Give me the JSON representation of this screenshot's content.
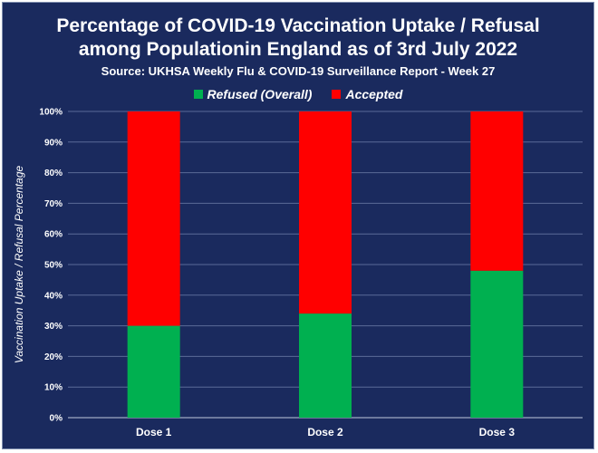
{
  "chart_data": {
    "type": "bar",
    "stacked": true,
    "title": "Percentage of COVID-19 Vaccination Uptake / Refusal",
    "title_line2": "among Populationin England as of 3rd July 2022",
    "subtitle": "Source: UKHSA Weekly Flu & COVID-19 Surveillance Report - Week 27",
    "xlabel": "",
    "ylabel": "Vaccination Uptake / Refusal Percentage",
    "categories": [
      "Dose 1",
      "Dose 2",
      "Dose 3"
    ],
    "series": [
      {
        "name": "Refused (Overall)",
        "color": "#00b050",
        "values": [
          30,
          34,
          48
        ]
      },
      {
        "name": "Accepted",
        "color": "#ff0000",
        "values": [
          70,
          66,
          52
        ]
      }
    ],
    "ylim": [
      0,
      100
    ],
    "yticks": [
      "0%",
      "10%",
      "20%",
      "30%",
      "40%",
      "50%",
      "60%",
      "70%",
      "80%",
      "90%",
      "100%"
    ],
    "grid": true,
    "legend_position": "top"
  }
}
